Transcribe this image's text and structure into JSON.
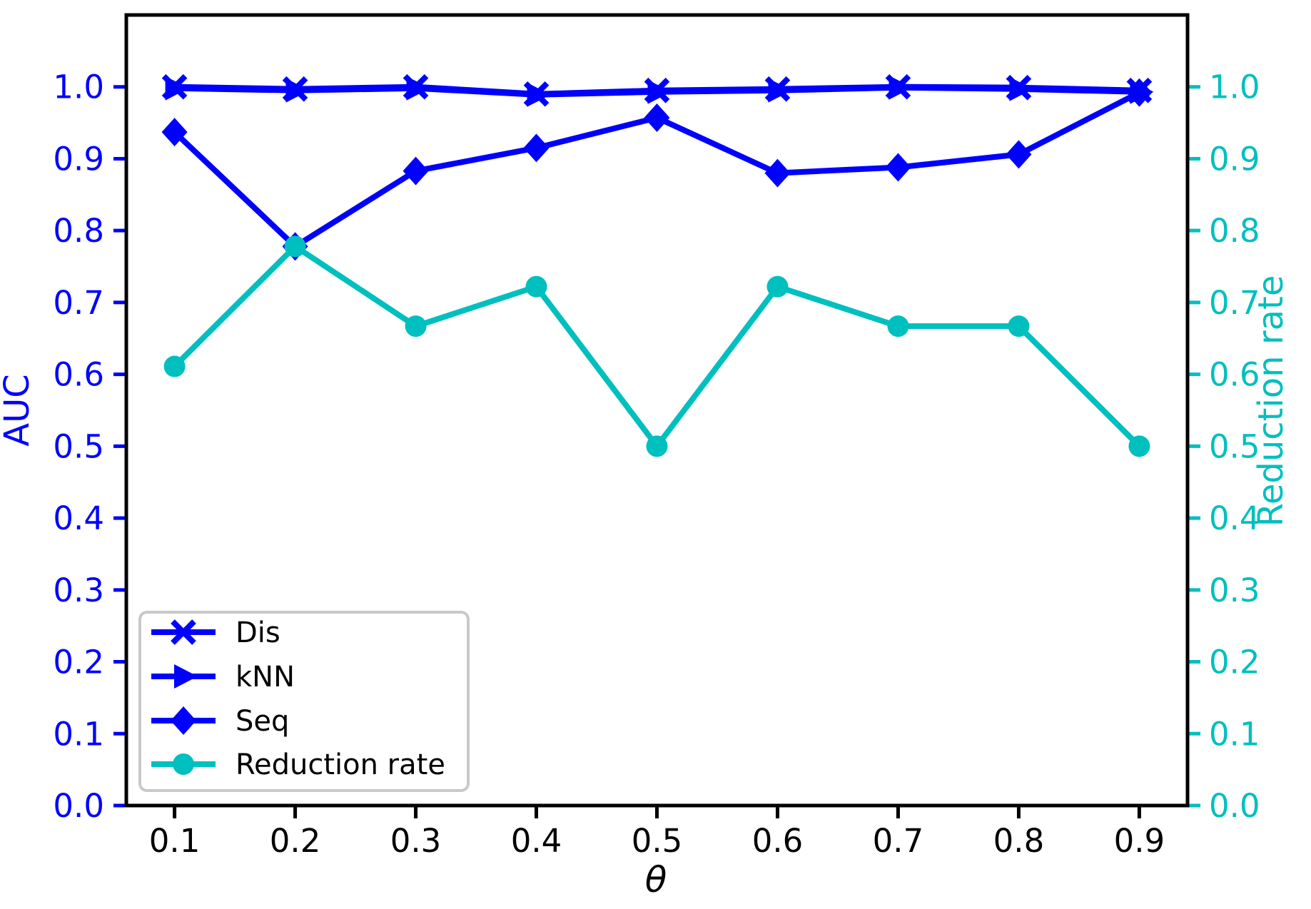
{
  "chart_data": {
    "type": "line",
    "title": "",
    "xlabel": "θ",
    "ylabel_left": "AUC",
    "ylabel_right": "Reduction rate",
    "x": [
      0.1,
      0.2,
      0.3,
      0.4,
      0.5,
      0.6,
      0.7,
      0.8,
      0.9
    ],
    "xtick_labels": [
      "0.1",
      "0.2",
      "0.3",
      "0.4",
      "0.5",
      "0.6",
      "0.7",
      "0.8",
      "0.9"
    ],
    "yticks": [
      0.0,
      0.1,
      0.2,
      0.3,
      0.4,
      0.5,
      0.6,
      0.7,
      0.8,
      0.9,
      1.0
    ],
    "ytick_labels": [
      "0.0",
      "0.1",
      "0.2",
      "0.3",
      "0.4",
      "0.5",
      "0.6",
      "0.7",
      "0.8",
      "0.9",
      "1.0"
    ],
    "xlim": [
      0.06,
      0.94
    ],
    "ylim": [
      0.0,
      1.1
    ],
    "grid": false,
    "series": [
      {
        "name": "kNN",
        "axis": "left",
        "color": "#0000ff",
        "marker": "triangle-right",
        "values": [
          0.998,
          0.995,
          0.998,
          0.989,
          0.993,
          0.995,
          0.999,
          0.997,
          0.993
        ]
      },
      {
        "name": "Dis",
        "axis": "left",
        "color": "#0000ff",
        "marker": "x",
        "values": [
          1.0,
          0.997,
          1.0,
          0.99,
          0.995,
          0.997,
          1.0,
          0.999,
          0.995
        ]
      },
      {
        "name": "Seq",
        "axis": "left",
        "color": "#0000ff",
        "marker": "diamond",
        "values": [
          0.937,
          0.778,
          0.883,
          0.915,
          0.957,
          0.88,
          0.888,
          0.906,
          0.992
        ]
      },
      {
        "name": "Reduction rate",
        "axis": "right",
        "color": "#00bfbf",
        "marker": "circle",
        "values": [
          0.611,
          0.778,
          0.667,
          0.722,
          0.5,
          0.722,
          0.667,
          0.667,
          0.5
        ]
      }
    ],
    "legend": {
      "position": "lower left",
      "entries": [
        "Dis",
        "kNN",
        "Seq",
        "Reduction rate"
      ]
    },
    "colors": {
      "left_axis": "#0000ff",
      "right_axis": "#00bfbf",
      "x_axis": "#000000",
      "spine": "#000000",
      "legend_border": "#c9c9c9",
      "background": "#ffffff"
    }
  }
}
